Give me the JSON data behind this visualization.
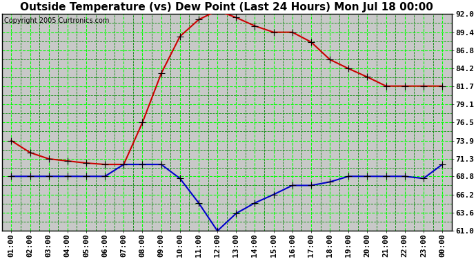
{
  "title": "Outside Temperature (vs) Dew Point (Last 24 Hours) Mon Jul 18 00:00",
  "copyright": "Copyright 2005 Curtronics.com",
  "x_labels": [
    "01:00",
    "02:00",
    "03:00",
    "04:00",
    "05:00",
    "06:00",
    "07:00",
    "08:00",
    "09:00",
    "10:00",
    "11:00",
    "12:00",
    "13:00",
    "14:00",
    "15:00",
    "16:00",
    "17:00",
    "18:00",
    "19:00",
    "20:00",
    "21:00",
    "22:00",
    "23:00",
    "00:00"
  ],
  "temp_data": [
    73.9,
    72.2,
    71.3,
    71.0,
    70.7,
    70.5,
    70.5,
    76.5,
    83.5,
    88.8,
    91.2,
    92.5,
    91.5,
    90.3,
    89.4,
    89.4,
    88.0,
    85.5,
    84.2,
    83.0,
    81.7,
    81.7,
    81.7,
    81.7
  ],
  "dew_data": [
    68.8,
    68.8,
    68.8,
    68.8,
    68.8,
    68.8,
    70.5,
    70.5,
    70.5,
    68.5,
    65.0,
    61.0,
    63.5,
    65.0,
    66.2,
    67.5,
    67.5,
    68.0,
    68.8,
    68.8,
    68.8,
    68.8,
    68.5,
    70.5
  ],
  "temp_color": "#cc0000",
  "dew_color": "#0000cc",
  "bg_color": "#ffffff",
  "plot_bg_color": "#c8c8c8",
  "grid_major_color": "#00ff00",
  "grid_minor_color": "#008800",
  "y_major_ticks": [
    61.0,
    63.6,
    66.2,
    68.8,
    71.3,
    73.9,
    76.5,
    79.1,
    81.7,
    84.2,
    86.8,
    89.4,
    92.0
  ],
  "ylim": [
    61.0,
    92.0
  ],
  "title_fontsize": 11,
  "copyright_fontsize": 7,
  "tick_fontsize": 8,
  "marker_size": 3.5,
  "linewidth": 1.5
}
